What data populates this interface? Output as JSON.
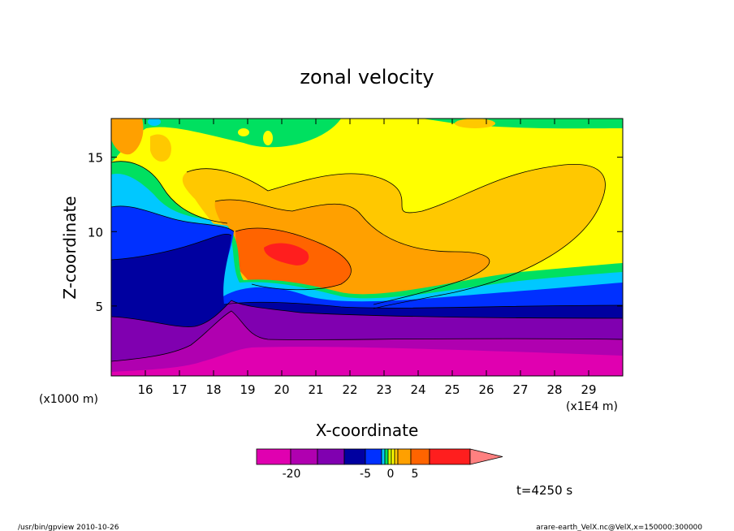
{
  "chart_data": {
    "type": "heatmap",
    "title": "zonal velocity",
    "xlabel": "X-coordinate",
    "ylabel": "Z-coordinate",
    "x_unit_left": "(x1000 m)",
    "x_unit_right": "(x1E4 m)",
    "x_ticks": [
      "16",
      "17",
      "18",
      "19",
      "20",
      "21",
      "22",
      "23",
      "24",
      "25",
      "26",
      "27",
      "28",
      "29"
    ],
    "x_tick_values": [
      16,
      17,
      18,
      19,
      20,
      21,
      22,
      23,
      24,
      25,
      26,
      27,
      28,
      29
    ],
    "xlim": [
      15,
      30
    ],
    "y_ticks": [
      "5",
      "10",
      "15"
    ],
    "y_tick_values": [
      5,
      10,
      15
    ],
    "ylim": [
      0.3,
      17.6
    ],
    "time_label": "t=4250 s",
    "colorbar": {
      "colors": [
        "#e000b0",
        "#b000b0",
        "#8000b0",
        "#0000a0",
        "#0030ff",
        "#00c8ff",
        "#00e060",
        "#c8ff00",
        "#ffff00",
        "#ffc800",
        "#ffa000",
        "#ff6400",
        "#ff1e1e",
        "#ff8080"
      ],
      "tick_labels": [
        "-20",
        "-5",
        "0",
        "5"
      ]
    }
  },
  "footer": {
    "left": "/usr/bin/gpview  2010-10-26",
    "right": "arare-earth_VelX.nc@VelX,x=150000:300000"
  }
}
